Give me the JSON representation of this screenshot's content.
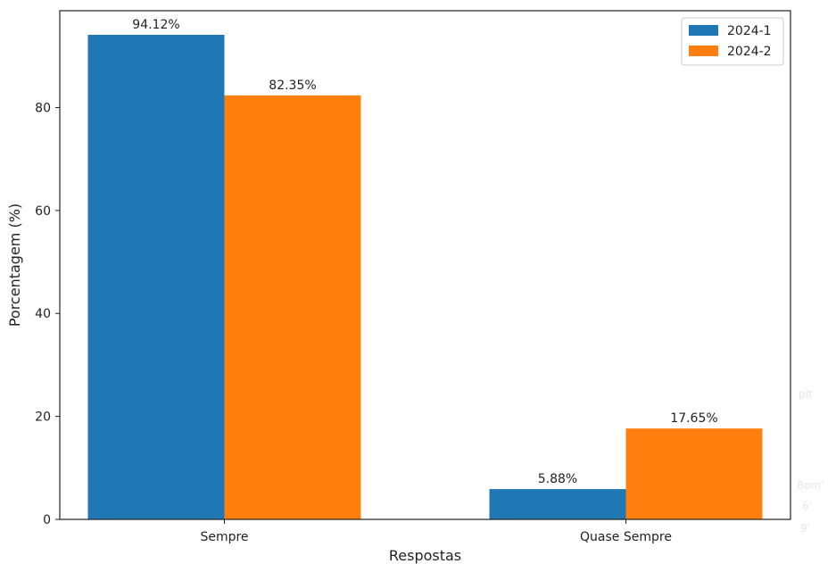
{
  "chart_data": {
    "type": "bar",
    "categories": [
      "Sempre",
      "Quase Sempre"
    ],
    "series": [
      {
        "name": "2024-1",
        "values": [
          94.12,
          5.88
        ],
        "labels": [
          "94.12%",
          "5.88%"
        ],
        "color": "#1f77b4"
      },
      {
        "name": "2024-2",
        "values": [
          82.35,
          17.65
        ],
        "labels": [
          "82.35%",
          "17.65%"
        ],
        "color": "#ff7f0e"
      }
    ],
    "title": "",
    "xlabel": "Respostas",
    "ylabel": "Porcentagem (%)",
    "ylim": [
      0,
      98.8
    ],
    "yticks": [
      0,
      20,
      40,
      60,
      80
    ],
    "legend_position": "top-right",
    "grid": false
  },
  "background_fragments": [
    "plt",
    "Bom'",
    "6'",
    "9'"
  ]
}
